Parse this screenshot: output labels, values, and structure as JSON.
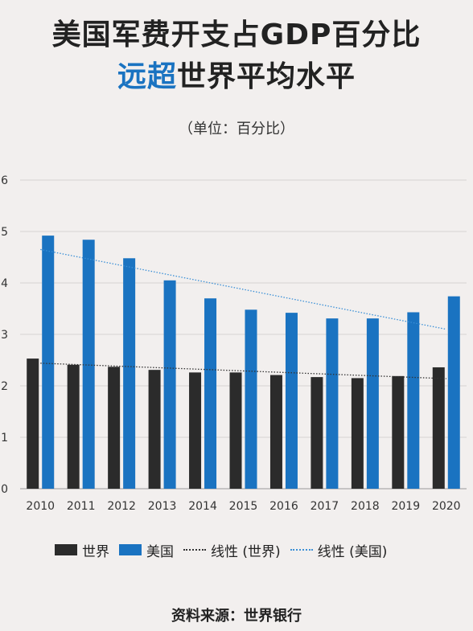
{
  "title": {
    "line1": "美国军费开支占GDP百分比",
    "line2_accent": "远超",
    "line2_rest": "世界平均水平"
  },
  "subtitle": "（单位：百分比）",
  "colors": {
    "world": "#2b2b2b",
    "usa": "#1a73c1",
    "grid": "#d6d3d2",
    "world_trend": "#333333",
    "usa_trend": "#3a8fd6"
  },
  "legend": {
    "world": "世界",
    "usa": "美国",
    "world_trend": "线性 (世界)",
    "usa_trend": "线性 (美国)"
  },
  "source": "资料来源：世界银行",
  "chart_data": {
    "type": "bar",
    "categories": [
      "2010",
      "2011",
      "2012",
      "2013",
      "2014",
      "2015",
      "2016",
      "2017",
      "2018",
      "2019",
      "2020"
    ],
    "series": [
      {
        "name": "世界",
        "values": [
          2.53,
          2.41,
          2.37,
          2.31,
          2.26,
          2.26,
          2.21,
          2.17,
          2.15,
          2.19,
          2.36
        ]
      },
      {
        "name": "美国",
        "values": [
          4.92,
          4.84,
          4.48,
          4.05,
          3.7,
          3.48,
          3.42,
          3.31,
          3.31,
          3.43,
          3.74
        ]
      }
    ],
    "trendlines": [
      {
        "name": "线性 (世界)",
        "start": 2.44,
        "end": 2.14
      },
      {
        "name": "线性 (美国)",
        "start": 4.65,
        "end": 3.1
      }
    ],
    "yticks": [
      "0",
      "1",
      "2",
      "3",
      "4",
      "5",
      "6"
    ],
    "ylim": [
      0,
      6
    ],
    "grid": true,
    "legend_position": "bottom"
  }
}
